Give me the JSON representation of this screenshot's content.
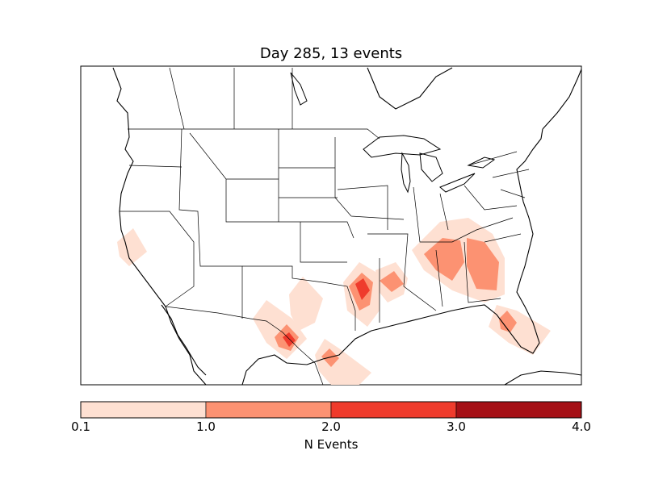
{
  "title": "Day 285, 13 events",
  "colorbar": {
    "label": "N Events",
    "ticks": [
      "0.1",
      "1.0",
      "2.0",
      "3.0",
      "4.0"
    ],
    "bins": [
      {
        "from": 0.1,
        "to": 1.0,
        "color": "#fee0d2"
      },
      {
        "from": 1.0,
        "to": 2.0,
        "color": "#fc9272"
      },
      {
        "from": 2.0,
        "to": 3.0,
        "color": "#ef3b2c"
      },
      {
        "from": 3.0,
        "to": 4.0,
        "color": "#a50f15"
      }
    ]
  },
  "colors": {
    "low": "#fee0d2",
    "mid": "#fc9272",
    "high": "#ef3b2c",
    "max": "#a50f15",
    "coast": "#000000"
  }
}
